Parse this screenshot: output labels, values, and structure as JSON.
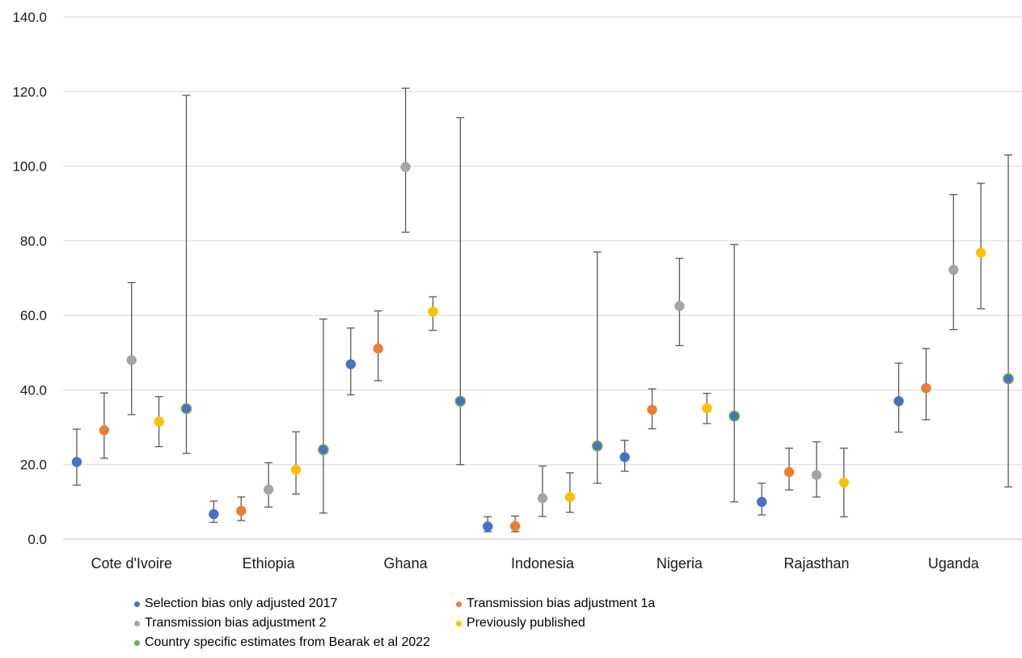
{
  "chart_data": {
    "type": "scatter",
    "title": "",
    "xlabel": "",
    "ylabel": "",
    "ylim": [
      0,
      140
    ],
    "yticks": [
      "0.0",
      "20.0",
      "40.0",
      "60.0",
      "80.0",
      "100.0",
      "120.0",
      "140.0"
    ],
    "grid": true,
    "legend_position": "bottom",
    "categories": [
      "Cote d'Ivoire",
      "Ethiopia",
      "Ghana",
      "Indonesia",
      "Nigeria",
      "Rajasthan",
      "Uganda"
    ],
    "series": [
      {
        "name": "Selection bias only adjusted 2017",
        "color": "#4472C4",
        "values": [
          20.7,
          6.7,
          46.9,
          3.4,
          22.0,
          10.0,
          37.0
        ],
        "lower": [
          14.5,
          4.5,
          38.7,
          2.0,
          18.2,
          6.5,
          28.7
        ],
        "upper": [
          29.5,
          10.2,
          56.6,
          6.0,
          26.5,
          15.0,
          47.2
        ]
      },
      {
        "name": "Transmission bias adjustment 1a",
        "color": "#ED7D31",
        "values": [
          29.2,
          7.6,
          51.1,
          3.5,
          34.7,
          18.0,
          40.5
        ],
        "lower": [
          21.7,
          5.0,
          42.5,
          2.0,
          29.6,
          13.2,
          32.0
        ],
        "upper": [
          39.2,
          11.3,
          61.2,
          6.2,
          40.3,
          24.4,
          51.1
        ]
      },
      {
        "name": "Transmission bias adjustment 2",
        "color": "#A5A5A5",
        "values": [
          48.0,
          13.3,
          99.8,
          11.0,
          62.5,
          17.2,
          72.2
        ],
        "lower": [
          33.4,
          8.6,
          82.3,
          6.1,
          51.9,
          11.3,
          56.2
        ],
        "upper": [
          68.8,
          20.5,
          120.9,
          19.6,
          75.3,
          26.1,
          92.4
        ]
      },
      {
        "name": "Previously published",
        "color": "#FFC000",
        "values": [
          31.5,
          18.6,
          61.0,
          11.3,
          35.1,
          15.2,
          76.8
        ],
        "lower": [
          24.8,
          12.1,
          56.0,
          7.2,
          31.0,
          6.0,
          61.8
        ],
        "upper": [
          38.2,
          28.8,
          65.0,
          17.8,
          39.1,
          24.4,
          95.4
        ]
      },
      {
        "name": "Country specific estimates from Bearak et al 2022",
        "color": "#70AD47",
        "values": [
          35.0,
          24.0,
          37.0,
          25.0,
          33.0,
          null,
          43.0
        ],
        "lower": [
          23.0,
          7.0,
          20.0,
          15.0,
          10.0,
          null,
          14.0
        ],
        "upper": [
          119.0,
          59.0,
          113.0,
          77.0,
          79.0,
          null,
          103.0
        ]
      }
    ]
  }
}
